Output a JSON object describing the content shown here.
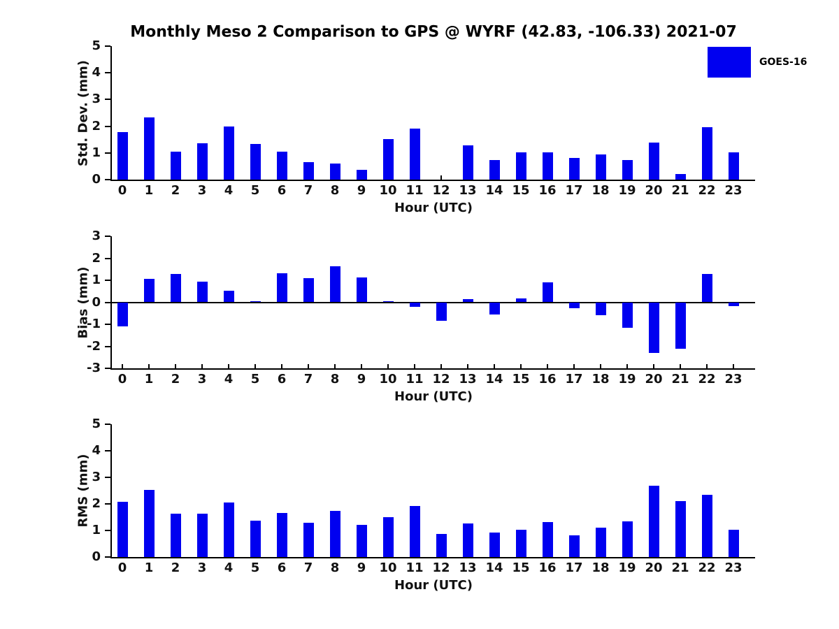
{
  "title": "Monthly Meso 2 Comparison to GPS @ WYRF (42.83, -106.33) 2021-07",
  "legend": {
    "label": "GOES-16",
    "color": "#0000F0",
    "position": "top-right"
  },
  "colors": {
    "bar": "#0000F0",
    "axis": "#000000",
    "text": "#111111",
    "background": "#ffffff"
  },
  "chart_data": [
    {
      "type": "bar",
      "series_name": "GOES-16",
      "ylabel": "Std. Dev. (mm)",
      "xlabel": "Hour (UTC)",
      "ylim": [
        0,
        5
      ],
      "yticks": [
        0,
        1,
        2,
        3,
        4,
        5
      ],
      "grid": false,
      "categories": [
        "0",
        "1",
        "2",
        "3",
        "4",
        "5",
        "6",
        "7",
        "8",
        "9",
        "10",
        "11",
        "12",
        "13",
        "14",
        "15",
        "16",
        "17",
        "18",
        "19",
        "20",
        "21",
        "22",
        "23"
      ],
      "values": [
        1.78,
        2.33,
        1.05,
        1.37,
        1.98,
        1.34,
        1.04,
        0.65,
        0.6,
        0.37,
        1.52,
        1.91,
        0.0,
        1.27,
        0.72,
        1.03,
        1.01,
        0.8,
        0.95,
        0.74,
        1.38,
        0.2,
        1.97,
        1.01
      ]
    },
    {
      "type": "bar",
      "series_name": "GOES-16",
      "ylabel": "Bias (mm)",
      "xlabel": "Hour (UTC)",
      "ylim": [
        -3,
        3
      ],
      "yticks": [
        -3,
        -2,
        -1,
        0,
        1,
        2,
        3
      ],
      "grid": false,
      "categories": [
        "0",
        "1",
        "2",
        "3",
        "4",
        "5",
        "6",
        "7",
        "8",
        "9",
        "10",
        "11",
        "12",
        "13",
        "14",
        "15",
        "16",
        "17",
        "18",
        "19",
        "20",
        "21",
        "22",
        "23"
      ],
      "values": [
        -1.08,
        1.05,
        1.3,
        0.93,
        0.52,
        0.05,
        1.33,
        1.11,
        1.63,
        1.13,
        0.05,
        -0.22,
        -0.83,
        0.15,
        -0.57,
        0.18,
        0.9,
        -0.28,
        -0.58,
        -1.15,
        -2.3,
        -2.1,
        1.27,
        -0.19
      ]
    },
    {
      "type": "bar",
      "series_name": "GOES-16",
      "ylabel": "RMS (mm)",
      "xlabel": "Hour (UTC)",
      "ylim": [
        0,
        5
      ],
      "yticks": [
        0,
        1,
        2,
        3,
        4,
        5
      ],
      "grid": false,
      "categories": [
        "0",
        "1",
        "2",
        "3",
        "4",
        "5",
        "6",
        "7",
        "8",
        "9",
        "10",
        "11",
        "12",
        "13",
        "14",
        "15",
        "16",
        "17",
        "18",
        "19",
        "20",
        "21",
        "22",
        "23"
      ],
      "values": [
        2.08,
        2.52,
        1.64,
        1.64,
        2.06,
        1.36,
        1.67,
        1.28,
        1.75,
        1.2,
        1.51,
        1.93,
        0.86,
        1.27,
        0.93,
        1.03,
        1.32,
        0.82,
        1.1,
        1.35,
        2.68,
        2.1,
        2.33,
        1.03
      ]
    }
  ]
}
